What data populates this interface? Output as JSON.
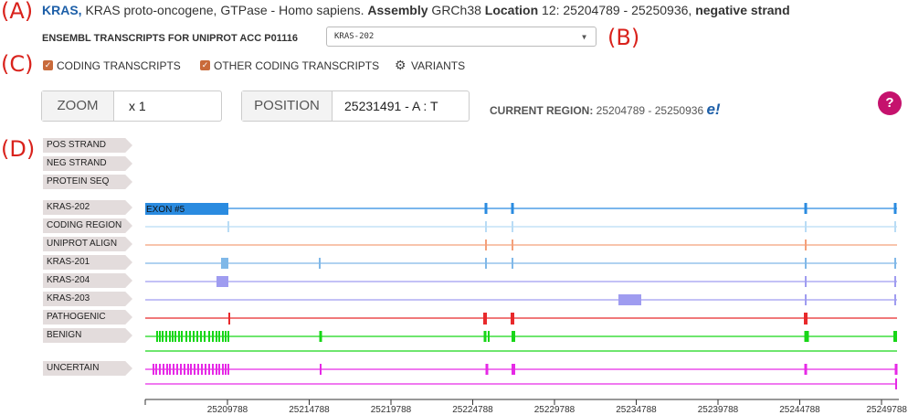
{
  "labels": {
    "a": "(A)",
    "b": "(B)",
    "c": "(C)",
    "d": "(D)"
  },
  "header": {
    "gene_symbol": "KRAS,",
    "gene_desc": " KRAS proto-oncogene, GTPase - Homo sapiens. ",
    "assembly_label": "Assembly",
    "assembly_value": " GRCh38 ",
    "location_label": "Location",
    "location_value": " 12: 25204789 - 25250936, ",
    "strand": "negative strand"
  },
  "transcripts": {
    "label": "ENSEMBL TRANSCRIPTS FOR UNIPROT ACC P01116",
    "selected": "KRAS-202"
  },
  "filters": {
    "coding": "CODING TRANSCRIPTS",
    "other_coding": "OTHER CODING TRANSCRIPTS",
    "variants": "VARIANTS"
  },
  "zoom": {
    "label": "ZOOM",
    "value": "x 1"
  },
  "position": {
    "label": "POSITION",
    "value": "25231491 - A : T"
  },
  "region": {
    "label": "CURRENT REGION:",
    "value": " 25204789 - 25250936 "
  },
  "help_label": "?",
  "tracks": [
    {
      "label": "POS STRAND"
    },
    {
      "label": "NEG STRAND"
    },
    {
      "label": "PROTEIN SEQ"
    },
    {
      "label": "KRAS-202"
    },
    {
      "label": "CODING REGION"
    },
    {
      "label": "UNIPROT ALIGN"
    },
    {
      "label": "KRAS-201"
    },
    {
      "label": "KRAS-204"
    },
    {
      "label": "KRAS-203"
    },
    {
      "label": "PATHOGENIC"
    },
    {
      "label": "BENIGN"
    },
    {
      "label": "UNCERTAIN"
    }
  ],
  "exon_label": "EXON #5",
  "axis": {
    "ticks": [
      "25209788",
      "25214788",
      "25219788",
      "25224788",
      "25229788",
      "25234788",
      "25239788",
      "25244788",
      "25249788"
    ]
  },
  "colors": {
    "kras202": "#2a8be0",
    "coding": "#b9dcf5",
    "uniprot": "#f4a07a",
    "kras201": "#80b8e8",
    "kras204": "#9f9cf0",
    "kras203": "#9f9cf0",
    "pathogenic": "#e8292b",
    "benign": "#17d617",
    "uncertain": "#e629e6"
  }
}
